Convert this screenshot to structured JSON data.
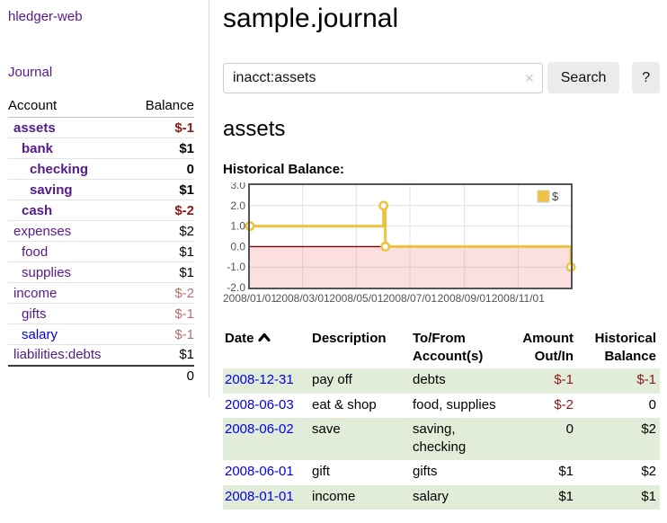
{
  "sidebar": {
    "brand": "hledger-web",
    "journal_link": "Journal",
    "accounts": {
      "col_account": "Account",
      "col_balance": "Balance",
      "rows": [
        {
          "name": "assets",
          "depth": 1,
          "bold": true,
          "balance": "$-1",
          "neg": "strong",
          "link_color": "purple"
        },
        {
          "name": "bank",
          "depth": 2,
          "bold": true,
          "balance": "$1",
          "neg": "none",
          "link_color": "purple"
        },
        {
          "name": "checking",
          "depth": 3,
          "bold": true,
          "balance": "0",
          "neg": "none",
          "link_color": "purple"
        },
        {
          "name": "saving",
          "depth": 3,
          "bold": true,
          "balance": "$1",
          "neg": "none",
          "link_color": "purple"
        },
        {
          "name": "cash",
          "depth": 2,
          "bold": true,
          "balance": "$-2",
          "neg": "strong",
          "link_color": "purple"
        },
        {
          "name": "expenses",
          "depth": 1,
          "bold": false,
          "balance": "$2",
          "neg": "none",
          "link_color": "purple"
        },
        {
          "name": "food",
          "depth": 2,
          "bold": false,
          "balance": "$1",
          "neg": "none",
          "link_color": "purple"
        },
        {
          "name": "supplies",
          "depth": 2,
          "bold": false,
          "balance": "$1",
          "neg": "none",
          "link_color": "purple"
        },
        {
          "name": "income",
          "depth": 1,
          "bold": false,
          "balance": "$-2",
          "neg": "soft",
          "link_color": "purple"
        },
        {
          "name": "gifts",
          "depth": 2,
          "bold": false,
          "balance": "$-1",
          "neg": "soft",
          "link_color": "purple"
        },
        {
          "name": "salary",
          "depth": 2,
          "bold": false,
          "balance": "$-1",
          "neg": "soft",
          "link_color": "blue"
        },
        {
          "name": "liabilities:debts",
          "depth": 1,
          "bold": false,
          "balance": "$1",
          "neg": "none",
          "link_color": "purple"
        }
      ],
      "total": "0"
    }
  },
  "main": {
    "title": "sample.journal",
    "search": {
      "value": "inacct:assets",
      "clear_icon": "✕",
      "search_button": "Search",
      "help_button": "?"
    },
    "account_heading": "assets",
    "section_label": "Historical Balance:"
  },
  "chart_data": {
    "type": "line",
    "title": "Historical Balance:",
    "step": true,
    "series": [
      {
        "name": "$",
        "color": "#edc240",
        "points": [
          [
            "2008-01-01",
            1
          ],
          [
            "2008-06-01",
            2
          ],
          [
            "2008-06-03",
            0
          ],
          [
            "2008-12-31",
            -1
          ]
        ]
      }
    ],
    "x_range": [
      "2008-01-01",
      "2008-12-31"
    ],
    "ylim": [
      -2.0,
      3.0
    ],
    "yticks": [
      "3.0",
      "2.0",
      "1.0",
      "0.0",
      "-1.0",
      "-2.0"
    ],
    "xticks": [
      "2008/01/01",
      "2008/03/01",
      "2008/05/01",
      "2008/07/01",
      "2008/09/01",
      "2008/11/01"
    ],
    "grid": true,
    "legend": {
      "label": "$",
      "position": "top-right"
    },
    "negative_region_color": "#f9dada",
    "zero_line_color": "#800000",
    "border_color": "#545454"
  },
  "register": {
    "headers": {
      "date": "Date",
      "description": "Description",
      "accounts": "To/From Account(s)",
      "amount": "Amount Out/In",
      "balance": "Historical Balance"
    },
    "rows": [
      {
        "date": "2008-12-31",
        "description": "pay off",
        "accounts": "debts",
        "amount": "$-1",
        "amount_neg": true,
        "balance": "$-1",
        "balance_neg": true
      },
      {
        "date": "2008-06-03",
        "description": "eat & shop",
        "accounts": "food, supplies",
        "amount": "$-2",
        "amount_neg": true,
        "balance": "0",
        "balance_neg": false
      },
      {
        "date": "2008-06-02",
        "description": "save",
        "accounts": "saving, checking",
        "amount": "0",
        "amount_neg": false,
        "balance": "$2",
        "balance_neg": false
      },
      {
        "date": "2008-06-01",
        "description": "gift",
        "accounts": "gifts",
        "amount": "$1",
        "amount_neg": false,
        "balance": "$2",
        "balance_neg": false
      },
      {
        "date": "2008-01-01",
        "description": "income",
        "accounts": "salary",
        "amount": "$1",
        "amount_neg": false,
        "balance": "$1",
        "balance_neg": false
      }
    ]
  },
  "colors": {
    "link_visited_purple": "#551a8b",
    "link_blue": "#0000ee",
    "negative_strong": "#8b1a1a",
    "negative_soft": "#b5706e",
    "row_stripe_green": "#e1edd8",
    "chart_line_gold": "#edc240"
  }
}
